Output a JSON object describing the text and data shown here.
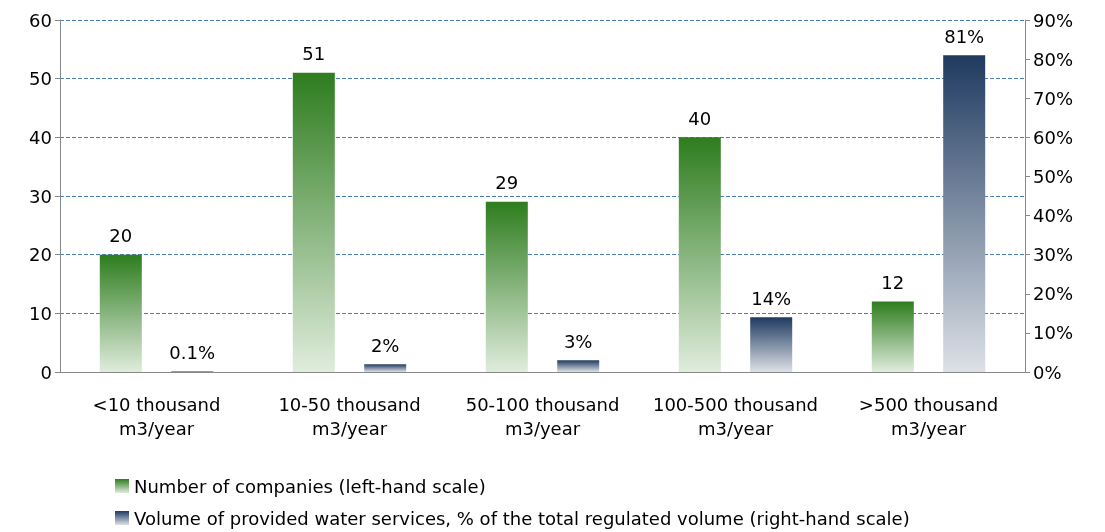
{
  "chart_data": {
    "type": "bar",
    "categories": [
      "<10 thousand\nm3/year",
      "10-50 thousand\nm3/year",
      "50-100 thousand\nm3/year",
      "100-500 thousand\nm3/year",
      ">500 thousand\nm3/year"
    ],
    "series": [
      {
        "name": "Number of companies (left-hand scale)",
        "color": "#2e7d1e",
        "values": [
          20,
          51,
          29,
          40,
          12
        ],
        "value_labels": [
          "20",
          "51",
          "29",
          "40",
          "12"
        ]
      },
      {
        "name": "Volume of provided water services, % of the total regulated volume (right-hand scale)",
        "color": "#1f3a60",
        "axis": "y2",
        "values": [
          0.1,
          2,
          3,
          14,
          81
        ],
        "value_labels": [
          "0.1%",
          "2%",
          "3%",
          "14%",
          "81%"
        ]
      }
    ],
    "ylim": [
      0,
      60
    ],
    "yticks": [
      0,
      10,
      20,
      30,
      40,
      50,
      60
    ],
    "y2lim": [
      0,
      90
    ],
    "y2ticks": [
      {
        "value": 0,
        "label": "0%"
      },
      {
        "value": 10,
        "label": "10%"
      },
      {
        "value": 20,
        "label": "20%"
      },
      {
        "value": 30,
        "label": "30%"
      },
      {
        "value": 40,
        "label": "40%"
      },
      {
        "value": 50,
        "label": "50%"
      },
      {
        "value": 60,
        "label": "60%"
      },
      {
        "value": 70,
        "label": "70%"
      },
      {
        "value": 80,
        "label": "80%"
      },
      {
        "value": 90,
        "label": "90%"
      }
    ],
    "grid": "y",
    "legend": "bottom"
  }
}
